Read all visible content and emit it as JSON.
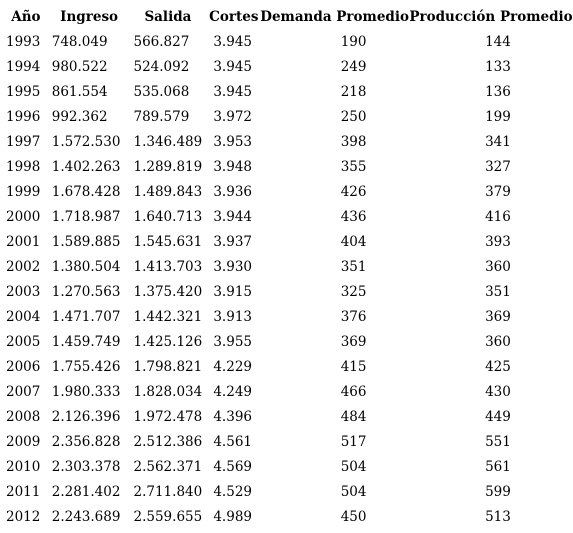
{
  "table": {
    "headers": [
      "Año",
      "Ingreso",
      "Salida",
      "Cortes",
      "Demanda Promedio",
      "Producción Promedio"
    ],
    "rows": [
      [
        "1993",
        "748.049",
        "566.827",
        "3.945",
        "190",
        "144"
      ],
      [
        "1994",
        "980.522",
        "524.092",
        "3.945",
        "249",
        "133"
      ],
      [
        "1995",
        "861.554",
        "535.068",
        "3.945",
        "218",
        "136"
      ],
      [
        "1996",
        "992.362",
        "789.579",
        "3.972",
        "250",
        "199"
      ],
      [
        "1997",
        "1.572.530",
        "1.346.489",
        "3.953",
        "398",
        "341"
      ],
      [
        "1998",
        "1.402.263",
        "1.289.819",
        "3.948",
        "355",
        "327"
      ],
      [
        "1999",
        "1.678.428",
        "1.489.843",
        "3.936",
        "426",
        "379"
      ],
      [
        "2000",
        "1.718.987",
        "1.640.713",
        "3.944",
        "436",
        "416"
      ],
      [
        "2001",
        "1.589.885",
        "1.545.631",
        "3.937",
        "404",
        "393"
      ],
      [
        "2002",
        "1.380.504",
        "1.413.703",
        "3.930",
        "351",
        "360"
      ],
      [
        "2003",
        "1.270.563",
        "1.375.420",
        "3.915",
        "325",
        "351"
      ],
      [
        "2004",
        "1.471.707",
        "1.442.321",
        "3.913",
        "376",
        "369"
      ],
      [
        "2005",
        "1.459.749",
        "1.425.126",
        "3.955",
        "369",
        "360"
      ],
      [
        "2006",
        "1.755.426",
        "1.798.821",
        "4.229",
        "415",
        "425"
      ],
      [
        "2007",
        "1.980.333",
        "1.828.034",
        "4.249",
        "466",
        "430"
      ],
      [
        "2008",
        "2.126.396",
        "1.972.478",
        "4.396",
        "484",
        "449"
      ],
      [
        "2009",
        "2.356.828",
        "2.512.386",
        "4.561",
        "517",
        "551"
      ],
      [
        "2010",
        "2.303.378",
        "2.562.371",
        "4.569",
        "504",
        "561"
      ],
      [
        "2011",
        "2.281.402",
        "2.711.840",
        "4.529",
        "504",
        "599"
      ],
      [
        "2012",
        "2.243.689",
        "2.559.655",
        "4.989",
        "450",
        "513"
      ]
    ]
  }
}
